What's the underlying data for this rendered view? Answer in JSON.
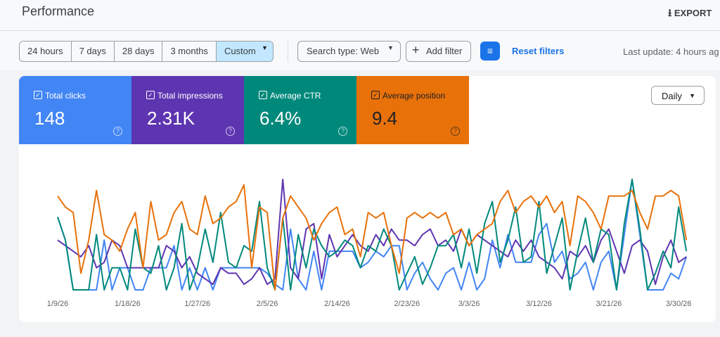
{
  "header": {
    "title": "Performance",
    "export": "EXPORT"
  },
  "filters": {
    "ranges": [
      "24 hours",
      "7 days",
      "28 days",
      "3 months",
      "Custom"
    ],
    "search_type": "Search type: Web",
    "add_filter": "Add filter",
    "reset": "Reset filters",
    "last_update": "Last update: 4 hours ag"
  },
  "metrics": [
    {
      "label": "Total clicks",
      "value": "148"
    },
    {
      "label": "Total impressions",
      "value": "2.31K"
    },
    {
      "label": "Average CTR",
      "value": "6.4%"
    },
    {
      "label": "Average position",
      "value": "9.4"
    }
  ],
  "granularity": "Daily",
  "chart_data": {
    "type": "line",
    "categories": [
      "1/9/26",
      null,
      null,
      null,
      null,
      null,
      null,
      null,
      null,
      "1/18/26",
      null,
      null,
      null,
      null,
      null,
      null,
      null,
      null,
      "1/27/26",
      null,
      null,
      null,
      null,
      null,
      null,
      null,
      null,
      "2/5/26",
      null,
      null,
      null,
      null,
      null,
      null,
      null,
      null,
      "2/14/26",
      null,
      null,
      null,
      null,
      null,
      null,
      null,
      null,
      "2/23/26",
      null,
      null,
      null,
      null,
      null,
      null,
      null,
      "3/3/26",
      null,
      null,
      null,
      null,
      null,
      null,
      null,
      null,
      "3/12/26",
      null,
      null,
      null,
      null,
      null,
      null,
      null,
      null,
      "3/21/26",
      null,
      null,
      null,
      null,
      null,
      null,
      null,
      null,
      "3/30/26",
      null
    ],
    "ylim": [
      0,
      100
    ],
    "series": [
      {
        "color": "#4285f4",
        "values": [
          66,
          45,
          0,
          0,
          0,
          0,
          45,
          0,
          20,
          20,
          0,
          0,
          20,
          20,
          20,
          40,
          0,
          20,
          0,
          20,
          0,
          20,
          20,
          20,
          20,
          20,
          20,
          15,
          5,
          0,
          55,
          10,
          0,
          35,
          0,
          35,
          35,
          35,
          35,
          20,
          25,
          35,
          30,
          40,
          40,
          0,
          15,
          25,
          10,
          0,
          15,
          20,
          0,
          25,
          0,
          10,
          45,
          20,
          50,
          25,
          25,
          25,
          50,
          60,
          25,
          35,
          10,
          15,
          25,
          0,
          25,
          35,
          0,
          50,
          100,
          50,
          0,
          0,
          0,
          15,
          10,
          30
        ]
      },
      {
        "color": "#5e35b1",
        "values": [
          45,
          40,
          35,
          30,
          40,
          20,
          25,
          45,
          40,
          20,
          20,
          20,
          20,
          20,
          40,
          35,
          20,
          30,
          15,
          10,
          5,
          20,
          15,
          15,
          5,
          10,
          20,
          5,
          10,
          100,
          20,
          10,
          55,
          60,
          10,
          50,
          30,
          40,
          50,
          40,
          35,
          50,
          40,
          55,
          45,
          45,
          40,
          50,
          55,
          40,
          45,
          35,
          55,
          40,
          50,
          45,
          40,
          35,
          30,
          45,
          35,
          45,
          30,
          25,
          20,
          10,
          35,
          30,
          40,
          25,
          45,
          55,
          35,
          15,
          40,
          45,
          35,
          5,
          30,
          45,
          25,
          30
        ]
      },
      {
        "color": "#00897b",
        "values": [
          66,
          45,
          0,
          0,
          0,
          50,
          0,
          20,
          20,
          0,
          55,
          20,
          15,
          40,
          0,
          20,
          60,
          0,
          20,
          55,
          25,
          70,
          25,
          20,
          40,
          35,
          80,
          20,
          0,
          65,
          0,
          50,
          20,
          55,
          40,
          30,
          35,
          45,
          40,
          20,
          40,
          35,
          55,
          40,
          0,
          15,
          30,
          5,
          20,
          40,
          40,
          50,
          20,
          55,
          15,
          60,
          80,
          25,
          45,
          75,
          25,
          30,
          80,
          15,
          40,
          65,
          0,
          35,
          65,
          25,
          55,
          50,
          0,
          60,
          100,
          55,
          0,
          15,
          35,
          20,
          75,
          35
        ]
      },
      {
        "color": "#e8710a",
        "values": [
          85,
          75,
          70,
          15,
          45,
          90,
          50,
          45,
          35,
          55,
          70,
          20,
          80,
          45,
          50,
          70,
          80,
          55,
          50,
          85,
          60,
          65,
          75,
          80,
          95,
          20,
          75,
          70,
          0,
          65,
          85,
          75,
          65,
          45,
          60,
          70,
          75,
          50,
          55,
          30,
          70,
          65,
          70,
          40,
          15,
          65,
          70,
          65,
          70,
          65,
          70,
          50,
          55,
          40,
          50,
          55,
          60,
          80,
          90,
          70,
          80,
          85,
          75,
          85,
          70,
          80,
          40,
          85,
          80,
          70,
          55,
          85,
          85,
          85,
          90,
          70,
          55,
          85,
          85,
          90,
          85,
          45
        ]
      }
    ]
  }
}
